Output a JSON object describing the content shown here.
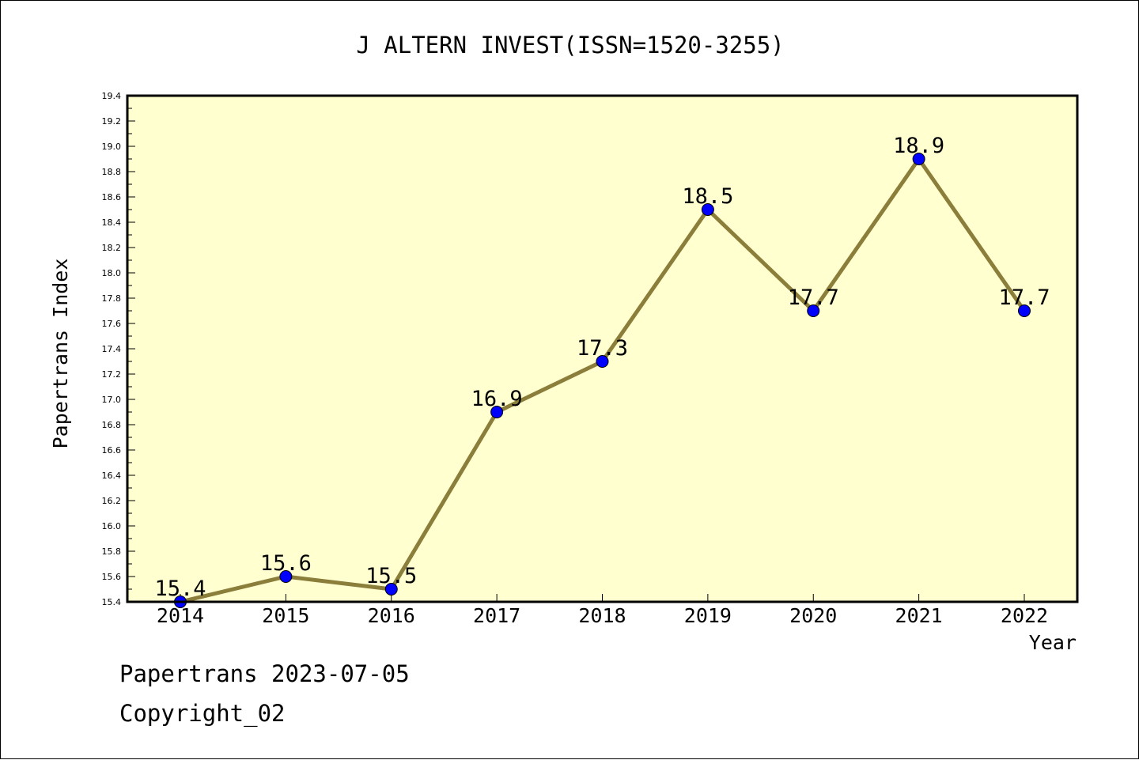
{
  "chart_data": {
    "type": "line",
    "title": "J ALTERN INVEST(ISSN=1520-3255)",
    "xlabel": "Year",
    "ylabel": "Papertrans Index",
    "categories": [
      "2014",
      "2015",
      "2016",
      "2017",
      "2018",
      "2019",
      "2020",
      "2021",
      "2022"
    ],
    "series": [
      {
        "values": [
          15.4,
          15.6,
          15.5,
          16.9,
          17.3,
          18.5,
          17.7,
          18.9,
          17.7
        ],
        "labels": [
          "15.4",
          "15.6",
          "15.5",
          "16.9",
          "17.3",
          "18.5",
          "17.7",
          "18.9",
          "17.7"
        ]
      }
    ],
    "ylim": [
      15.4,
      19.4
    ],
    "yticks": [
      "15.4",
      "15.6",
      "15.8",
      "16.0",
      "16.2",
      "16.4",
      "16.6",
      "16.8",
      "17.0",
      "17.2",
      "17.4",
      "17.6",
      "17.8",
      "18.0",
      "18.2",
      "18.4",
      "18.6",
      "18.8",
      "19.0",
      "19.2",
      "19.4"
    ],
    "grid": false,
    "colors": {
      "plot_background": "#ffffd0",
      "line": "#8b7d3a",
      "marker": "#0000ff"
    }
  },
  "footer": {
    "line1": "Papertrans 2023-07-05",
    "line2": "Copyright_02"
  }
}
